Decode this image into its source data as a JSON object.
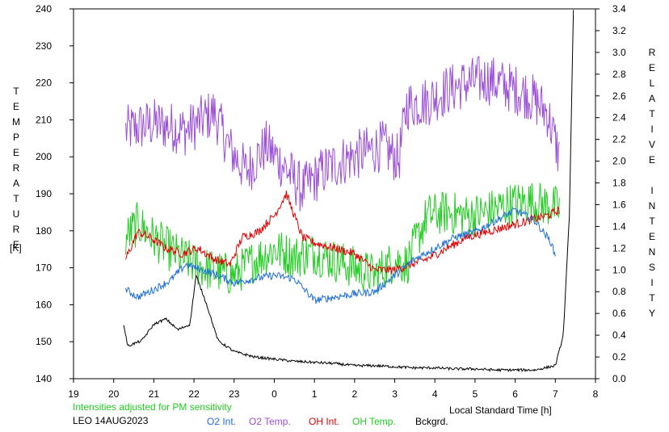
{
  "left_axis_title": "TEMPERATURE",
  "left_axis_unit": "[K]",
  "right_axis_title": "RELATIVE INTENSITY",
  "note": "Intensities adjusted for PM sensitivity",
  "station": "LEO 14AUG2023",
  "xlabel": "Local Standard Time [h]",
  "legend": [
    {
      "label": "O2 Int.",
      "color": "#1f6fd6"
    },
    {
      "label": "O2 Temp.",
      "color": "#9b4fd6"
    },
    {
      "label": "OH Int.",
      "color": "#e00000"
    },
    {
      "label": "OH Temp.",
      "color": "#22cc22"
    },
    {
      "label": "Bckgrd.",
      "color": "#000000"
    }
  ],
  "chart_data": {
    "type": "line",
    "x_ticks": [
      "19",
      "20",
      "21",
      "22",
      "23",
      "0",
      "1",
      "2",
      "3",
      "4",
      "5",
      "6",
      "7",
      "8"
    ],
    "y_left": {
      "min": 140,
      "max": 240,
      "ticks": [
        "140",
        "150",
        "160",
        "170",
        "180",
        "190",
        "200",
        "210",
        "220",
        "230",
        "240"
      ]
    },
    "y_right": {
      "min": 0.0,
      "max": 3.4,
      "ticks": [
        "0.0",
        "0.2",
        "0.4",
        "0.6",
        "0.8",
        "1.0",
        "1.2",
        "1.4",
        "1.6",
        "1.8",
        "2.0",
        "2.2",
        "2.4",
        "2.6",
        "2.8",
        "3.0",
        "3.2",
        "3.4"
      ]
    },
    "series": [
      {
        "name": "O2 Temp.",
        "axis": "left",
        "color": "#9b4fd6",
        "noise": 7,
        "x": [
          20.3,
          20.6,
          21.0,
          21.5,
          21.8,
          22.5,
          22.9,
          23.3,
          23.8,
          24.2,
          24.7,
          25.2,
          25.7,
          26.2,
          26.7,
          27.1,
          27.3,
          27.8,
          28.3,
          28.8,
          29.3,
          29.8,
          30.3,
          30.8,
          31.1
        ],
        "y": [
          207,
          208,
          209,
          208,
          207,
          212,
          202,
          196,
          203,
          198,
          191,
          196,
          199,
          201,
          203,
          199,
          214,
          215,
          218,
          220,
          221,
          219,
          217,
          212,
          200
        ]
      },
      {
        "name": "OH Temp.",
        "axis": "left",
        "color": "#22cc22",
        "noise": 6,
        "x": [
          20.3,
          20.6,
          21.0,
          21.5,
          22.0,
          22.5,
          23.0,
          23.5,
          24.0,
          24.5,
          25.0,
          25.5,
          26.0,
          26.5,
          27.0,
          27.3,
          27.8,
          28.3,
          28.8,
          29.3,
          29.8,
          30.3,
          30.8,
          31.1
        ],
        "y": [
          178,
          182,
          178,
          174,
          171,
          169,
          168,
          172,
          175,
          173,
          174,
          172,
          170,
          168,
          172,
          171,
          184,
          185,
          184,
          185,
          187,
          188,
          187,
          186
        ]
      },
      {
        "name": "OH Int.",
        "axis": "right",
        "color": "#e00000",
        "noise": 0.04,
        "x": [
          20.3,
          20.6,
          20.9,
          21.3,
          21.7,
          22.1,
          22.5,
          22.9,
          23.2,
          23.6,
          24.0,
          24.3,
          24.7,
          25.0,
          25.5,
          26.0,
          26.5,
          27.0,
          27.4,
          27.8,
          28.3,
          28.8,
          29.3,
          29.8,
          30.3,
          30.8,
          31.1
        ],
        "y": [
          1.1,
          1.35,
          1.3,
          1.2,
          1.15,
          1.2,
          1.1,
          1.05,
          1.3,
          1.35,
          1.5,
          1.7,
          1.3,
          1.25,
          1.2,
          1.15,
          1.0,
          1.0,
          1.05,
          1.1,
          1.2,
          1.3,
          1.35,
          1.4,
          1.45,
          1.5,
          1.55
        ]
      },
      {
        "name": "O2 Int.",
        "axis": "right",
        "color": "#1f6fd6",
        "noise": 0.035,
        "x": [
          20.3,
          20.6,
          21.0,
          21.4,
          21.8,
          22.2,
          22.6,
          23.0,
          23.5,
          24.0,
          24.5,
          25.0,
          25.5,
          26.0,
          26.5,
          27.0,
          27.5,
          28.0,
          28.5,
          29.0,
          29.5,
          30.0,
          30.5,
          30.9,
          31.0
        ],
        "y": [
          0.82,
          0.75,
          0.82,
          0.9,
          1.05,
          1.0,
          0.95,
          0.88,
          0.92,
          0.95,
          0.92,
          0.72,
          0.75,
          0.78,
          0.8,
          0.95,
          1.1,
          1.2,
          1.3,
          1.35,
          1.45,
          1.55,
          1.45,
          1.25,
          1.12
        ]
      },
      {
        "name": "Bckgrd.",
        "axis": "right",
        "color": "#000000",
        "noise": 0.012,
        "x": [
          20.25,
          20.35,
          20.7,
          21.0,
          21.3,
          21.6,
          21.9,
          22.05,
          22.3,
          22.6,
          23.0,
          23.5,
          24.0,
          24.5,
          25.0,
          25.5,
          26.0,
          26.5,
          27.0,
          27.5,
          28.0,
          28.5,
          29.0,
          29.5,
          30.0,
          30.5,
          31.0,
          31.2,
          31.35,
          31.45
        ],
        "y": [
          0.5,
          0.3,
          0.35,
          0.5,
          0.55,
          0.45,
          0.5,
          0.95,
          0.7,
          0.35,
          0.25,
          0.2,
          0.18,
          0.16,
          0.15,
          0.14,
          0.12,
          0.12,
          0.11,
          0.1,
          0.1,
          0.09,
          0.09,
          0.08,
          0.08,
          0.08,
          0.12,
          0.4,
          1.5,
          3.4
        ]
      }
    ]
  }
}
